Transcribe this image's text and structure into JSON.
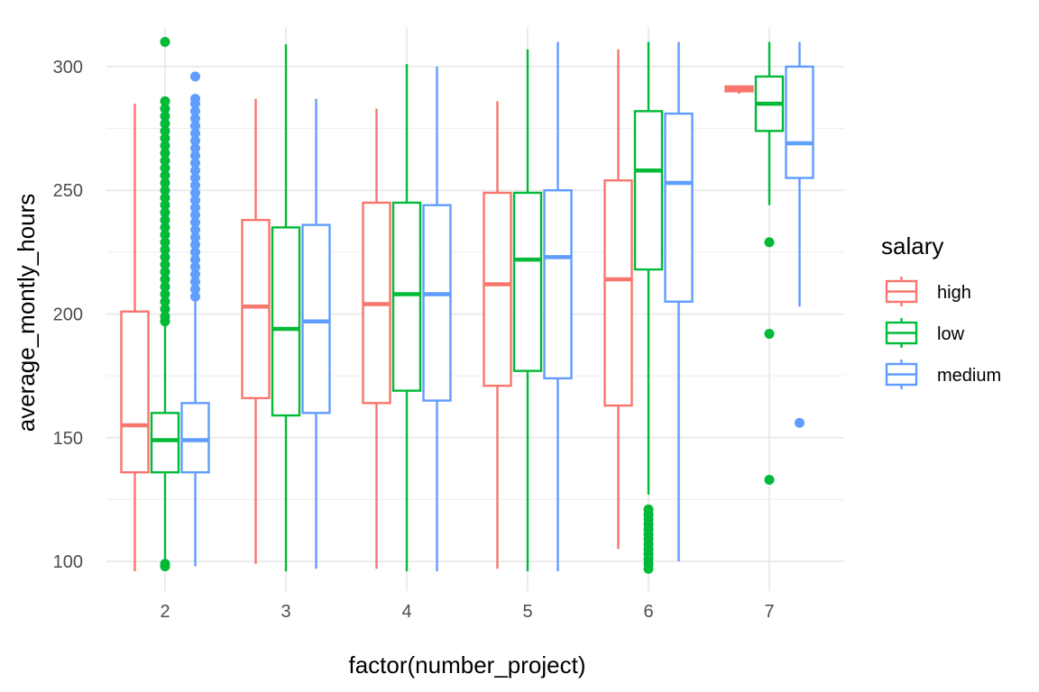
{
  "chart_data": {
    "type": "boxplot",
    "xlabel": "factor(number_project)",
    "ylabel": "average_montly_hours",
    "categories": [
      "2",
      "3",
      "4",
      "5",
      "6",
      "7"
    ],
    "ylim": [
      88,
      316
    ],
    "yticks": [
      100,
      150,
      200,
      250,
      300
    ],
    "grid": true,
    "legend": {
      "title": "salary",
      "position": "right"
    },
    "colors": {
      "high": "#F8766D",
      "low": "#00BA38",
      "medium": "#619CFF"
    },
    "series": [
      {
        "name": "high",
        "boxes": [
          {
            "category": "2",
            "min": 96,
            "q1": 136,
            "median": 155,
            "q3": 201,
            "max": 285,
            "outliers": []
          },
          {
            "category": "3",
            "min": 99,
            "q1": 166,
            "median": 203,
            "q3": 238,
            "max": 287,
            "outliers": []
          },
          {
            "category": "4",
            "min": 97,
            "q1": 164,
            "median": 204,
            "q3": 245,
            "max": 283,
            "outliers": []
          },
          {
            "category": "5",
            "min": 97,
            "q1": 171,
            "median": 212,
            "q3": 249,
            "max": 286,
            "outliers": []
          },
          {
            "category": "6",
            "min": 105,
            "q1": 163,
            "median": 214,
            "q3": 254,
            "max": 307,
            "outliers": []
          },
          {
            "category": "7",
            "min": 289,
            "q1": 290,
            "median": 291,
            "q3": 292,
            "max": 292,
            "outliers": []
          }
        ]
      },
      {
        "name": "low",
        "boxes": [
          {
            "category": "2",
            "min": 98,
            "q1": 136,
            "median": 149,
            "q3": 160,
            "max": 197,
            "outliers": [
              99,
              98,
              197,
              199,
              202,
              205,
              208,
              211,
              214,
              217,
              220,
              223,
              226,
              229,
              232,
              235,
              238,
              241,
              244,
              247,
              250,
              253,
              256,
              259,
              262,
              265,
              268,
              271,
              274,
              277,
              280,
              283,
              286,
              310
            ]
          },
          {
            "category": "3",
            "min": 96,
            "q1": 159,
            "median": 194,
            "q3": 235,
            "max": 309,
            "outliers": []
          },
          {
            "category": "4",
            "min": 96,
            "q1": 169,
            "median": 208,
            "q3": 245,
            "max": 301,
            "outliers": []
          },
          {
            "category": "5",
            "min": 96,
            "q1": 177,
            "median": 222,
            "q3": 249,
            "max": 307,
            "outliers": []
          },
          {
            "category": "6",
            "min": 127,
            "q1": 218,
            "median": 258,
            "q3": 282,
            "max": 310,
            "outliers": [
              97,
              99,
              101,
              103,
              105,
              107,
              109,
              111,
              113,
              115,
              117,
              119,
              121
            ]
          },
          {
            "category": "7",
            "min": 244,
            "q1": 274,
            "median": 285,
            "q3": 296,
            "max": 310,
            "outliers": [
              229,
              192,
              133
            ]
          }
        ]
      },
      {
        "name": "medium",
        "boxes": [
          {
            "category": "2",
            "min": 98,
            "q1": 136,
            "median": 149,
            "q3": 164,
            "max": 206,
            "outliers": [
              207,
              210,
              213,
              216,
              219,
              222,
              225,
              228,
              231,
              234,
              237,
              240,
              243,
              246,
              249,
              252,
              255,
              258,
              261,
              264,
              267,
              270,
              273,
              276,
              279,
              282,
              285,
              287,
              296
            ]
          },
          {
            "category": "3",
            "min": 97,
            "q1": 160,
            "median": 197,
            "q3": 236,
            "max": 287,
            "outliers": []
          },
          {
            "category": "4",
            "min": 96,
            "q1": 165,
            "median": 208,
            "q3": 244,
            "max": 300,
            "outliers": []
          },
          {
            "category": "5",
            "min": 96,
            "q1": 174,
            "median": 223,
            "q3": 250,
            "max": 310,
            "outliers": []
          },
          {
            "category": "6",
            "min": 100,
            "q1": 205,
            "median": 253,
            "q3": 281,
            "max": 310,
            "outliers": []
          },
          {
            "category": "7",
            "min": 203,
            "q1": 255,
            "median": 269,
            "q3": 300,
            "max": 310,
            "outliers": [
              156
            ]
          }
        ]
      }
    ]
  }
}
